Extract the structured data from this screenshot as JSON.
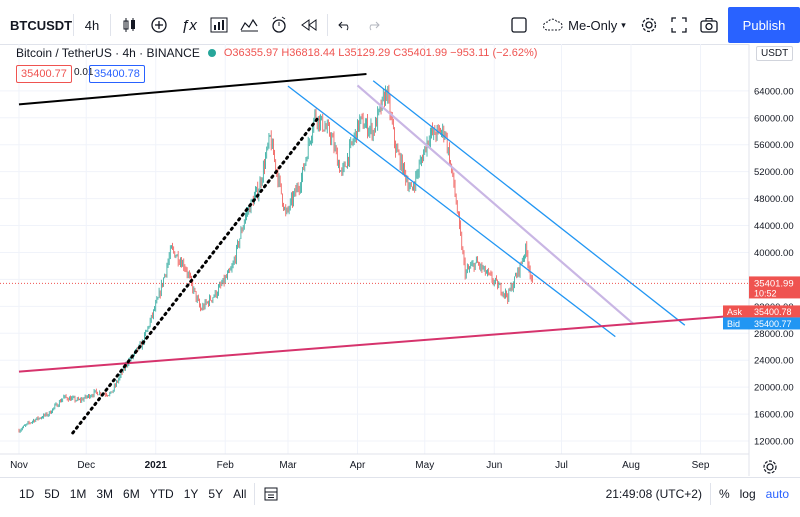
{
  "toolbar": {
    "symbol": "BTCUSDT",
    "interval": "4h",
    "fx_label": "ƒx",
    "undo_icon": "undo-icon",
    "redo_icon": "redo-icon",
    "layout_name": "Me-Only",
    "publish_label": "Publish"
  },
  "legend": {
    "title": "Bitcoin / TetherUS · 4h · BINANCE",
    "ohlc": "O36355.97 H36818.44 L35129.29 C35401.99 −953.11 (−2.62%)",
    "sell_price": "35400.77",
    "spread": "0.01",
    "buy_price": "35400.78"
  },
  "currency": "USDT",
  "bottom": {
    "ranges": [
      "1D",
      "5D",
      "1M",
      "3M",
      "6M",
      "YTD",
      "1Y",
      "5Y",
      "All"
    ],
    "active_range": "1Y",
    "time": "21:49:08 (UTC+2)",
    "percent": "%",
    "log": "log",
    "auto": "auto"
  },
  "colors": {
    "candle_up": "#26a69a",
    "candle_down": "#ef5350",
    "channel_blue": "#2196f3",
    "median_lilac": "#c9b6e4",
    "support_pink": "#d6336c",
    "trend_black": "#000000"
  },
  "chart_data": {
    "type": "candlestick",
    "x_labels": [
      "Nov",
      "Dec",
      "2021",
      "Feb",
      "Mar",
      "Apr",
      "May",
      "Jun",
      "Jul",
      "Aug",
      "Sep"
    ],
    "y_ticks": [
      12000,
      16000,
      20000,
      24000,
      28000,
      32000,
      36000,
      40000,
      44000,
      48000,
      52000,
      56000,
      60000,
      64000
    ],
    "ylim": [
      9500,
      66500
    ],
    "last_price": "35401.99",
    "countdown": "10:52",
    "ask_label": "Ask",
    "ask_price": "35400.78",
    "bid_label": "Bid",
    "bid_price": "35400.77",
    "price_series": [
      {
        "date": "2020-11-01",
        "price": 13600
      },
      {
        "date": "2020-11-07",
        "price": 15000
      },
      {
        "date": "2020-11-14",
        "price": 16000
      },
      {
        "date": "2020-11-21",
        "price": 18500
      },
      {
        "date": "2020-11-28",
        "price": 18000
      },
      {
        "date": "2020-12-05",
        "price": 19200
      },
      {
        "date": "2020-12-12",
        "price": 19000
      },
      {
        "date": "2020-12-19",
        "price": 23500
      },
      {
        "date": "2020-12-26",
        "price": 26500
      },
      {
        "date": "2021-01-02",
        "price": 33000
      },
      {
        "date": "2021-01-08",
        "price": 40500
      },
      {
        "date": "2021-01-14",
        "price": 38000
      },
      {
        "date": "2021-01-21",
        "price": 31500
      },
      {
        "date": "2021-01-28",
        "price": 34000
      },
      {
        "date": "2021-02-04",
        "price": 37500
      },
      {
        "date": "2021-02-10",
        "price": 45500
      },
      {
        "date": "2021-02-16",
        "price": 49500
      },
      {
        "date": "2021-02-21",
        "price": 57000
      },
      {
        "date": "2021-02-28",
        "price": 45500
      },
      {
        "date": "2021-03-07",
        "price": 51000
      },
      {
        "date": "2021-03-13",
        "price": 60500
      },
      {
        "date": "2021-03-20",
        "price": 57500
      },
      {
        "date": "2021-03-25",
        "price": 51500
      },
      {
        "date": "2021-04-02",
        "price": 59500
      },
      {
        "date": "2021-04-08",
        "price": 58000
      },
      {
        "date": "2021-04-14",
        "price": 64000
      },
      {
        "date": "2021-04-18",
        "price": 55500
      },
      {
        "date": "2021-04-25",
        "price": 49000
      },
      {
        "date": "2021-05-03",
        "price": 57500
      },
      {
        "date": "2021-05-10",
        "price": 58000
      },
      {
        "date": "2021-05-14",
        "price": 50000
      },
      {
        "date": "2021-05-19",
        "price": 37000
      },
      {
        "date": "2021-05-24",
        "price": 38500
      },
      {
        "date": "2021-05-31",
        "price": 36000
      },
      {
        "date": "2021-06-07",
        "price": 33500
      },
      {
        "date": "2021-06-12",
        "price": 37500
      },
      {
        "date": "2021-06-15",
        "price": 40500
      },
      {
        "date": "2021-06-18",
        "price": 35402
      }
    ],
    "lines": [
      {
        "name": "upper-channel",
        "style": "solid",
        "color": "#2196f3",
        "from": {
          "date": "2021-04-08",
          "price": 65500
        },
        "to": {
          "date": "2021-08-25",
          "price": 29200
        }
      },
      {
        "name": "lower-channel",
        "style": "solid",
        "color": "#2196f3",
        "from": {
          "date": "2021-03-01",
          "price": 64700
        },
        "to": {
          "date": "2021-07-25",
          "price": 27500
        }
      },
      {
        "name": "median-channel",
        "style": "solid",
        "color": "#c9b6e4",
        "from": {
          "date": "2021-04-01",
          "price": 64800
        },
        "to": {
          "date": "2021-08-02",
          "price": 29400
        }
      },
      {
        "name": "support-line",
        "style": "solid",
        "color": "#d6336c",
        "from": {
          "date": "2020-11-01",
          "price": 22300
        },
        "to": {
          "date": "2021-09-24",
          "price": 30800
        }
      },
      {
        "name": "top-trendline",
        "style": "solid",
        "color": "#000000",
        "from": {
          "date": "2020-11-01",
          "price": 62000
        },
        "to": {
          "date": "2021-04-05",
          "price": 66500
        }
      },
      {
        "name": "rising-trendline",
        "style": "dotted",
        "color": "#000000",
        "from": {
          "date": "2020-11-25",
          "price": 13200
        },
        "to": {
          "date": "2021-03-14",
          "price": 59800
        }
      }
    ]
  }
}
